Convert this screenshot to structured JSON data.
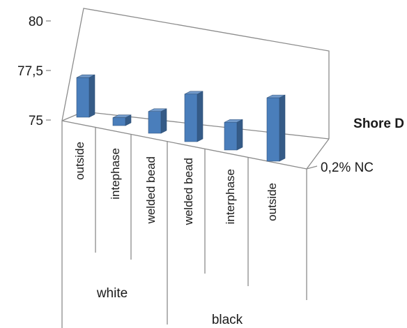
{
  "chart_data": {
    "type": "bar",
    "style": "3d-column",
    "groups": [
      {
        "label": "white",
        "categories": [
          "outside",
          "intephase",
          "welded bead"
        ]
      },
      {
        "label": "black",
        "categories": [
          "welded bead",
          "interphase",
          "outside"
        ]
      }
    ],
    "categories": [
      "outside",
      "intephase",
      "welded bead",
      "welded bead",
      "interphase",
      "outside"
    ],
    "series": [
      {
        "name": "0,2% NC",
        "values": [
          77.0,
          75.4,
          76.1,
          77.4,
          76.4,
          78.2
        ]
      }
    ],
    "z_axis_label": "0,2% NC",
    "ylabel": "Shore D",
    "ylim": [
      75,
      80
    ],
    "yticks": [
      "75",
      "77,5",
      "80"
    ],
    "bar_color": "#4a7ebb",
    "grid": false,
    "legend": "none"
  }
}
